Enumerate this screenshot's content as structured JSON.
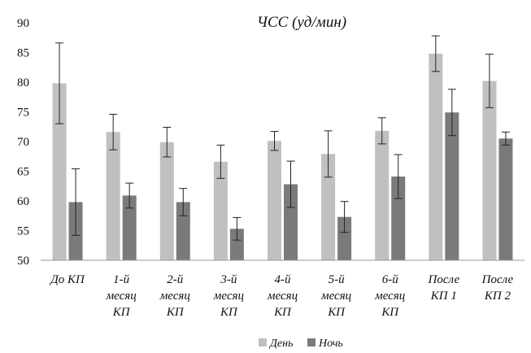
{
  "chart_data": {
    "type": "bar",
    "title": "ЧСС (уд/мин)",
    "xlabel": "",
    "ylabel": "",
    "ylim": [
      50,
      90
    ],
    "yticks": [
      50,
      55,
      60,
      65,
      70,
      75,
      80,
      85,
      90
    ],
    "grid": false,
    "legend_position": "bottom",
    "categories": [
      [
        "До КП"
      ],
      [
        "1-й",
        "месяц",
        "КП"
      ],
      [
        "2-й",
        "месяц",
        "КП"
      ],
      [
        "3-й",
        "месяц",
        "КП"
      ],
      [
        "4-й",
        "месяц",
        "КП"
      ],
      [
        "5-й",
        "месяц",
        "КП"
      ],
      [
        "6-й",
        "месяц",
        "КП"
      ],
      [
        "После",
        "КП 1"
      ],
      [
        "После",
        "КП 2"
      ]
    ],
    "series": [
      {
        "name": "День",
        "color": "#c0c0c0",
        "values": [
          79.8,
          71.6,
          69.9,
          66.6,
          70.1,
          67.9,
          71.8,
          84.8,
          80.2
        ],
        "errors": [
          6.8,
          3.0,
          2.5,
          2.8,
          1.6,
          3.9,
          2.2,
          3.0,
          4.5
        ]
      },
      {
        "name": "Ночь",
        "color": "#7a7a7a",
        "values": [
          59.8,
          60.9,
          59.8,
          55.3,
          62.8,
          57.3,
          64.1,
          74.9,
          70.5
        ],
        "errors": [
          5.6,
          2.1,
          2.3,
          1.9,
          3.9,
          2.6,
          3.7,
          3.9,
          1.1
        ]
      }
    ]
  }
}
